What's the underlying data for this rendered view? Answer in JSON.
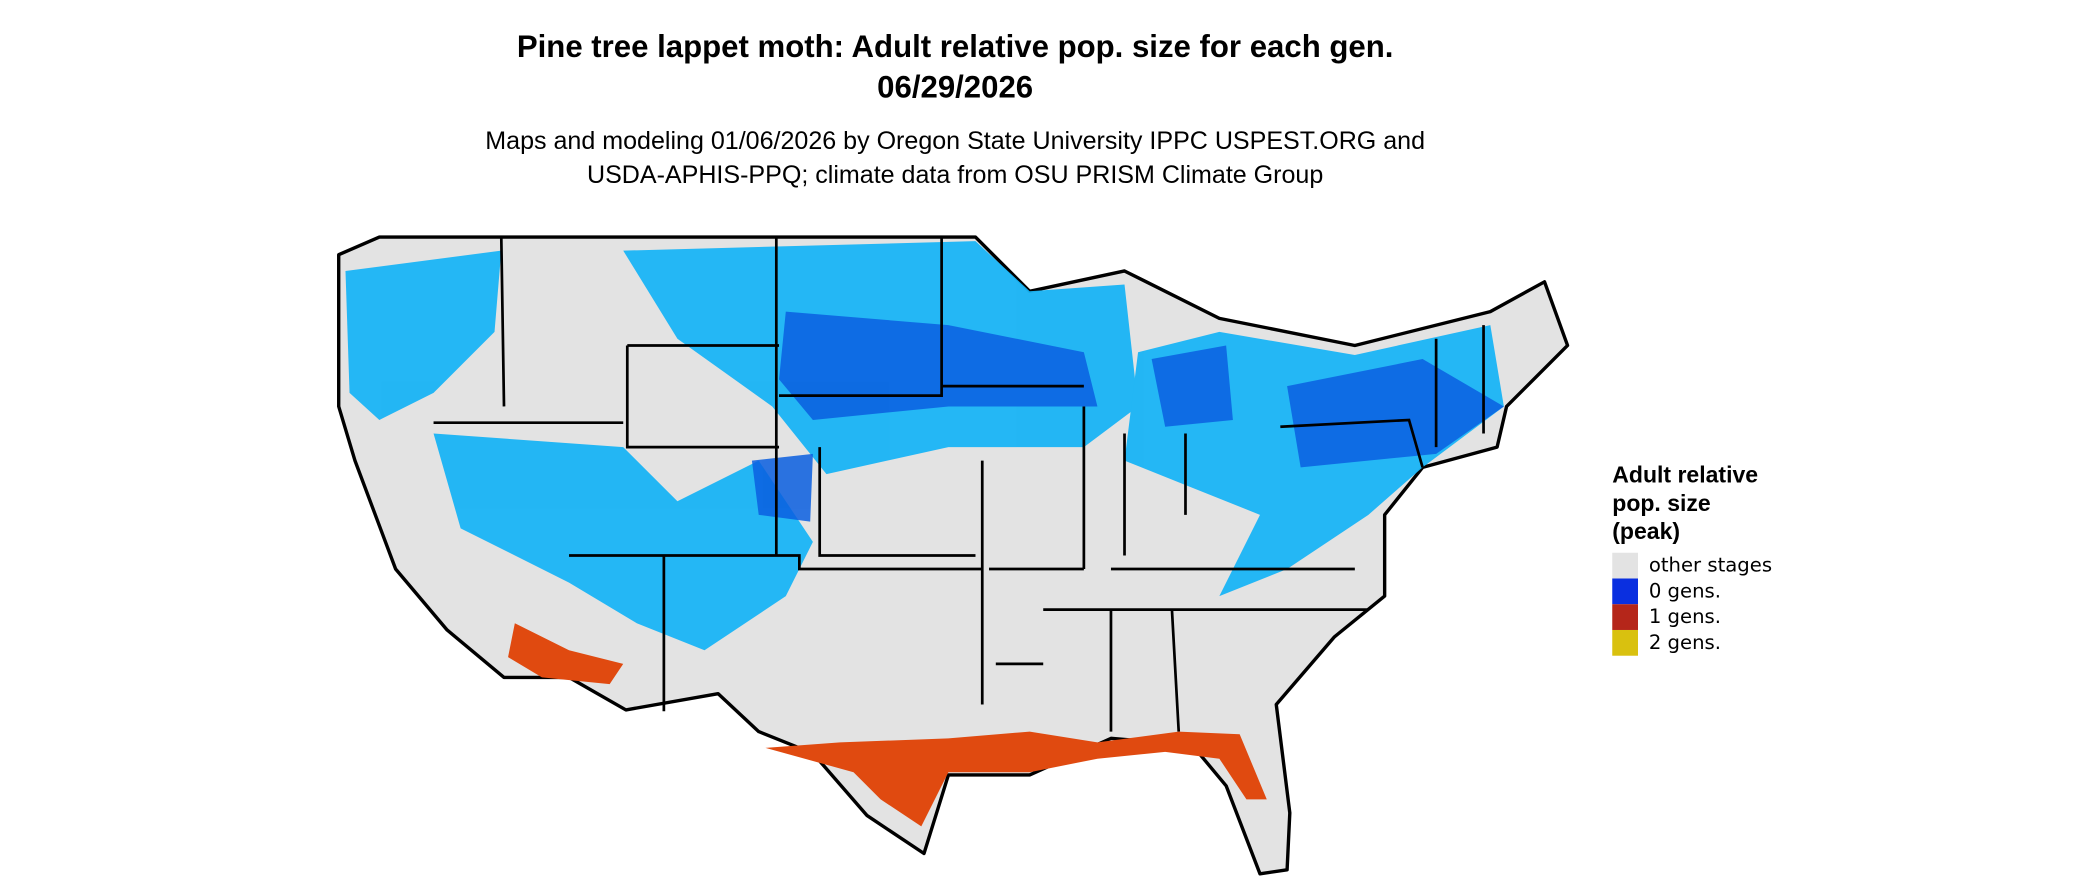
{
  "header": {
    "title_lines": [
      "Pine tree lappet moth: Adult relative pop. size for each gen.",
      "06/29/2026"
    ],
    "subtitle_lines": [
      "Maps and modeling 01/06/2026 by Oregon State University IPPC USPEST.ORG and",
      "USDA-APHIS-PPQ; climate data from OSU PRISM Climate Group"
    ]
  },
  "legend": {
    "title_lines": [
      "Adult relative",
      "pop. size",
      "(peak)"
    ],
    "items": [
      {
        "label": "other stages",
        "color": "#e3e3e3"
      },
      {
        "label": "0 gens.",
        "color": "#0a2fe0"
      },
      {
        "label": "1 gens.",
        "color": "#b5261a"
      },
      {
        "label": "2 gens.",
        "color": "#d9c10f"
      }
    ]
  }
}
